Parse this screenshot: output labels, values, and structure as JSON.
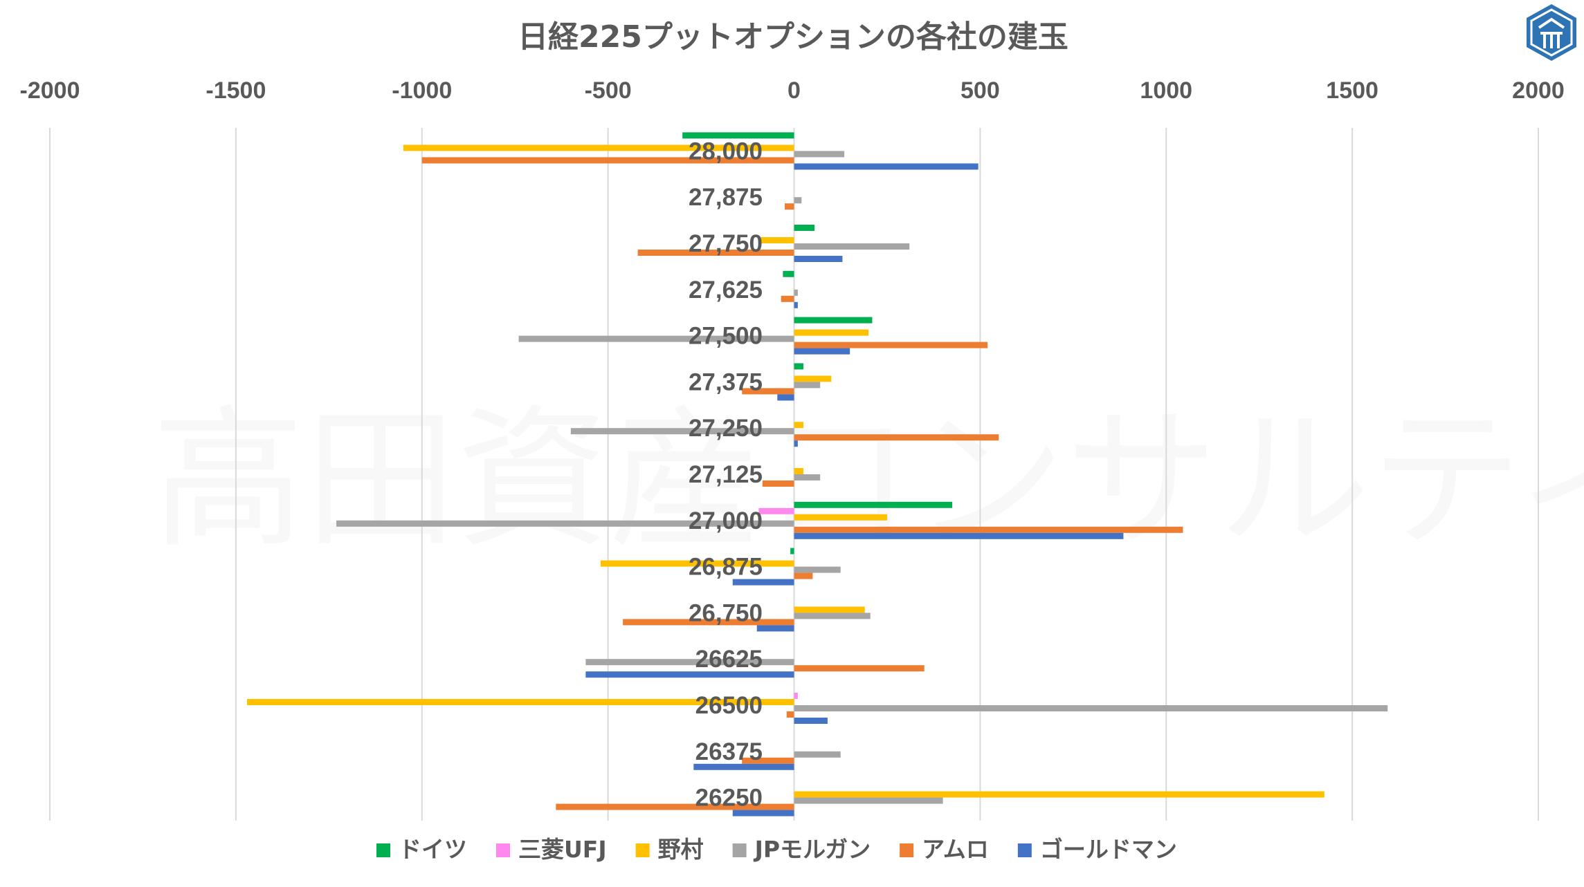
{
  "chart_data": {
    "type": "bar",
    "orientation": "horizontal",
    "title": "日経225プットオプションの各社の建玉",
    "watermark": "高田資産コンサルティング",
    "xlim": [
      -2000,
      2000
    ],
    "xticks": [
      -2000,
      -1500,
      -1000,
      -500,
      0,
      500,
      1000,
      1500,
      2000
    ],
    "grid": "vertical",
    "legend_position": "bottom",
    "categories": [
      "28,000",
      "27,875",
      "27,750",
      "27,625",
      "27,500",
      "27,375",
      "27,250",
      "27,125",
      "27,000",
      "26,875",
      "26,750",
      "26625",
      "26500",
      "26375",
      "26250"
    ],
    "series": [
      {
        "name": "ドイツ",
        "color": "#00b050",
        "values": [
          -300,
          0,
          55,
          -30,
          210,
          25,
          0,
          0,
          425,
          -10,
          0,
          0,
          0,
          0,
          0
        ]
      },
      {
        "name": "三菱UFJ",
        "color": "#ff88ee",
        "values": [
          0,
          0,
          0,
          0,
          0,
          0,
          0,
          0,
          -95,
          0,
          0,
          0,
          10,
          0,
          0
        ]
      },
      {
        "name": "野村",
        "color": "#ffc000",
        "values": [
          -1050,
          0,
          -90,
          0,
          200,
          100,
          25,
          25,
          250,
          -520,
          190,
          0,
          -1470,
          0,
          1425
        ]
      },
      {
        "name": "JPモルガン",
        "color": "#a5a5a5",
        "values": [
          135,
          20,
          310,
          10,
          -740,
          70,
          -600,
          70,
          -1230,
          125,
          205,
          -560,
          1595,
          125,
          400
        ]
      },
      {
        "name": "アムロ",
        "color": "#ed7d31",
        "values": [
          -1000,
          -25,
          -420,
          -35,
          520,
          -140,
          550,
          -85,
          1045,
          50,
          -460,
          350,
          -20,
          -140,
          -640
        ]
      },
      {
        "name": "ゴールドマン",
        "color": "#4472c4",
        "values": [
          495,
          0,
          130,
          10,
          150,
          -45,
          10,
          0,
          885,
          -165,
          -100,
          -560,
          90,
          -270,
          -165
        ]
      }
    ]
  },
  "logo": {
    "name": "company-logo"
  }
}
